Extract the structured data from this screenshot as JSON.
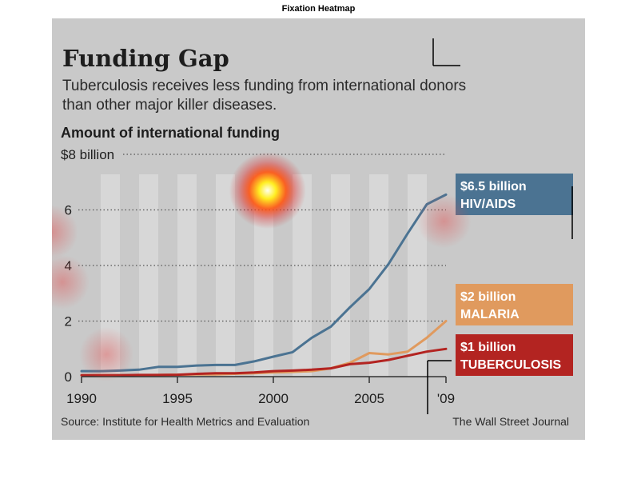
{
  "window_title": "Fixation Heatmap",
  "chart_data": {
    "type": "line",
    "title": "Funding Gap",
    "subtitle_lines": [
      "Tuberculosis receives less funding from international donors",
      "than other major killer diseases."
    ],
    "ylabel": "Amount of international funding",
    "y_ticks": [
      "$8 billion",
      "6",
      "4",
      "2",
      "0"
    ],
    "y_tick_values": [
      8,
      6,
      4,
      2,
      0
    ],
    "ylim": [
      0,
      8
    ],
    "xlim": [
      1990,
      2009
    ],
    "x_ticks": [
      "1990",
      "1995",
      "2000",
      "2005",
      "'09"
    ],
    "x_tick_values": [
      1990,
      1995,
      2000,
      2005,
      2009
    ],
    "grid": "dotted horizontal",
    "x": [
      1990,
      1991,
      1992,
      1993,
      1994,
      1995,
      1996,
      1997,
      1998,
      1999,
      2000,
      2001,
      2002,
      2003,
      2004,
      2005,
      2006,
      2007,
      2008,
      2009
    ],
    "series": [
      {
        "key": "hiv",
        "color": "#4b7392",
        "values": [
          0.2,
          0.2,
          0.22,
          0.25,
          0.35,
          0.35,
          0.4,
          0.42,
          0.42,
          0.55,
          0.72,
          0.88,
          1.4,
          1.8,
          2.5,
          3.15,
          4.05,
          5.15,
          6.2,
          6.55
        ]
      },
      {
        "key": "malaria",
        "color": "#e09a5e",
        "values": [
          0.05,
          0.05,
          0.05,
          0.05,
          0.06,
          0.07,
          0.08,
          0.08,
          0.1,
          0.12,
          0.15,
          0.17,
          0.2,
          0.3,
          0.5,
          0.85,
          0.8,
          0.9,
          1.4,
          2.0
        ]
      },
      {
        "key": "tb",
        "color": "#b32421",
        "values": [
          0.05,
          0.05,
          0.05,
          0.06,
          0.06,
          0.07,
          0.1,
          0.12,
          0.12,
          0.15,
          0.2,
          0.22,
          0.25,
          0.3,
          0.45,
          0.5,
          0.6,
          0.75,
          0.9,
          1.0
        ]
      }
    ],
    "labels": [
      {
        "key": "hiv",
        "line1": "$6.5 billion",
        "line2": "HIV/AIDS",
        "color": "#4b7392"
      },
      {
        "key": "malaria",
        "line1": "$2 billion",
        "line2": "MALARIA",
        "color": "#e09a5e"
      },
      {
        "key": "tb",
        "line1": "$1 billion",
        "line2": "TUBERCULOSIS",
        "color": "#b32421"
      }
    ],
    "source": "Source: Institute for Health Metrics and Evaluation",
    "credit": "The Wall Street Journal",
    "heatmap_fixations": [
      {
        "x": 1999.7,
        "y": 6.7,
        "intensity": 1.0
      },
      {
        "x": 2008.9,
        "y": 5.6,
        "intensity": 0.35
      },
      {
        "x": 1988.4,
        "y": 5.2,
        "intensity": 0.4
      },
      {
        "x": 1989.0,
        "y": 3.4,
        "intensity": 0.35
      },
      {
        "x": 1991.3,
        "y": 0.8,
        "intensity": 0.35
      }
    ]
  }
}
